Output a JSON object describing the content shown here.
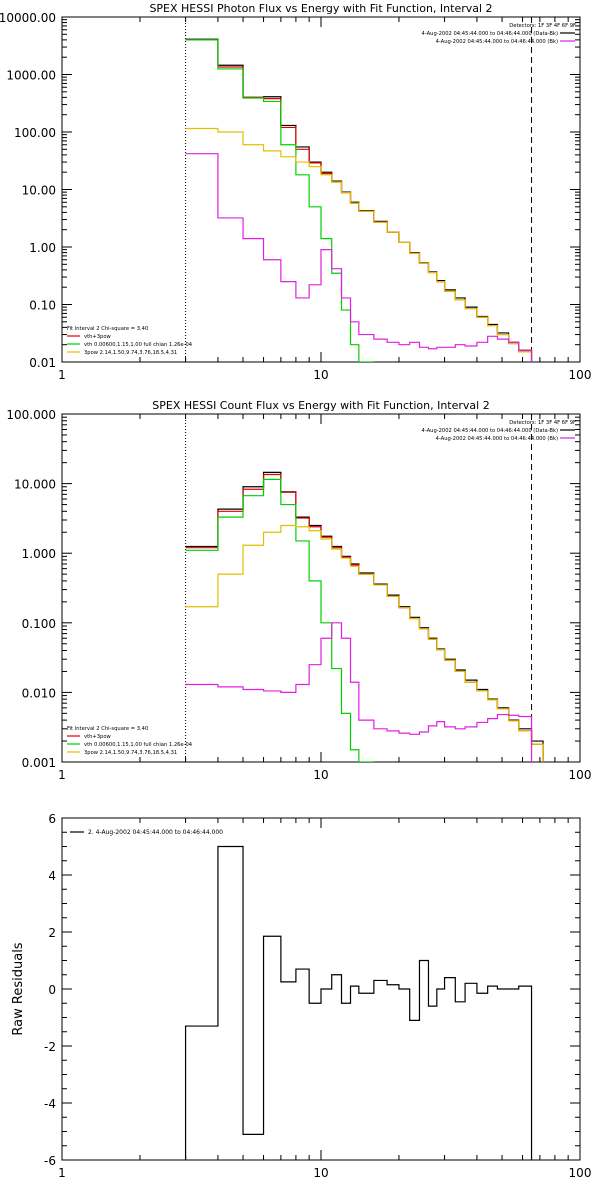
{
  "chart_data": [
    {
      "type": "line",
      "title": "SPEX HESSI Photon Flux vs Energy with Fit Function, Interval 2",
      "xlabel": "",
      "ylabel": "",
      "xscale": "log",
      "yscale": "log",
      "xlim": [
        1,
        100
      ],
      "ylim": [
        0.01,
        10000
      ],
      "xticks": [
        "1",
        "10",
        "100"
      ],
      "yticks": [
        "10000.00",
        "1000.00",
        "100.00",
        "10.00",
        "1.00",
        "0.10",
        "0.01"
      ],
      "vlines": [
        {
          "x": 3,
          "style": "dotted"
        },
        {
          "x": 65,
          "style": "dashed"
        }
      ],
      "legend_top": {
        "placement": "top-right",
        "lines": [
          {
            "text": "Detectors: 1F 3F 4F 6F 9F",
            "color": ""
          },
          {
            "text": "4-Aug-2002 04:45:44.000 to 04:46:44.000 (Data-Bk)",
            "color": "#000000"
          },
          {
            "text": "4-Aug-2002 04:45:44.000 to 04:46:44.000 (Bk)",
            "color": "#e020e0"
          }
        ]
      },
      "legend_bottom": {
        "placement": "bottom-left",
        "lines": [
          {
            "text": "Fit Interval 2   Chi-square = 3.40",
            "color": ""
          },
          {
            "text": "vth+3pow",
            "color": "#e00000"
          },
          {
            "text": "vth 0.00600,1.15,1.00  full chian 1.26e-04",
            "color": "#00d000"
          },
          {
            "text": "3pow 2.14,1.50,9.74,3.76,18.5,4.31",
            "color": "#e0c000"
          }
        ]
      },
      "edges": [
        3,
        4,
        5,
        6,
        7,
        8,
        9,
        10,
        11,
        12,
        13,
        14,
        16,
        18,
        20,
        22,
        24,
        26,
        28,
        30,
        33,
        36,
        40,
        44,
        48,
        53,
        58,
        65
      ],
      "series": [
        {
          "color": "#000000",
          "values": [
            4100,
            1450,
            400,
            410,
            130,
            55,
            30,
            20,
            14,
            9,
            6,
            4.3,
            2.8,
            1.8,
            1.2,
            0.8,
            0.53,
            0.37,
            0.26,
            0.18,
            0.13,
            0.09,
            0.062,
            0.045,
            0.032,
            0.022,
            0.016
          ]
        },
        {
          "color": "#e00000",
          "values": [
            4000,
            1350,
            400,
            380,
            120,
            50,
            29,
            19,
            13.5,
            8.8,
            5.8,
            4.2,
            2.7,
            1.8,
            1.2,
            0.78,
            0.52,
            0.36,
            0.25,
            0.17,
            0.12,
            0.085,
            0.06,
            0.043,
            0.03,
            0.021,
            0.015
          ]
        },
        {
          "color": "#00d000",
          "values": [
            4000,
            1250,
            390,
            340,
            60,
            18,
            5,
            1.4,
            0.35,
            0.08,
            0.02,
            0.008
          ]
        },
        {
          "color": "#e0c000",
          "values": [
            115,
            100,
            60,
            47,
            37,
            30,
            25,
            18,
            13.5,
            8.8,
            5.8,
            4.2,
            2.7,
            1.8,
            1.2,
            0.78,
            0.52,
            0.36,
            0.25,
            0.17,
            0.12,
            0.085,
            0.06,
            0.043,
            0.03,
            0.021,
            0.015
          ]
        },
        {
          "color": "#e020e0",
          "values": [
            42,
            3.2,
            1.4,
            0.6,
            0.25,
            0.13,
            0.22,
            0.9,
            0.42,
            0.13,
            0.05,
            0.03,
            0.025,
            0.022,
            0.02,
            0.022,
            0.018,
            0.017,
            0.018,
            0.018,
            0.02,
            0.019,
            0.022,
            0.028,
            0.025,
            0.022,
            0.016
          ]
        }
      ]
    },
    {
      "type": "line",
      "title": "SPEX HESSI Count Flux vs Energy with Fit Function, Interval 2",
      "xlabel": "",
      "ylabel": "",
      "xscale": "log",
      "yscale": "log",
      "xlim": [
        1,
        100
      ],
      "ylim": [
        0.001,
        100
      ],
      "xticks": [
        "1",
        "10",
        "100"
      ],
      "yticks": [
        "100.000",
        "10.000",
        "1.000",
        "0.100",
        "0.010",
        "0.001"
      ],
      "vlines": [
        {
          "x": 3,
          "style": "dotted"
        },
        {
          "x": 65,
          "style": "dashed"
        }
      ],
      "legend_top": {
        "placement": "top-right",
        "lines": [
          {
            "text": "Detectors: 1F 3F 4F 6F 9F",
            "color": ""
          },
          {
            "text": "4-Aug-2002 04:45:44.000 to 04:46:44.000 (Data-Bk)",
            "color": "#000000"
          },
          {
            "text": "4-Aug-2002 04:45:44.000 to 04:46:44.000 (Bk)",
            "color": "#e020e0"
          }
        ]
      },
      "legend_bottom": {
        "placement": "bottom-left",
        "lines": [
          {
            "text": "Fit Interval 2   Chi-square = 3.40",
            "color": ""
          },
          {
            "text": "vth+3pow",
            "color": "#e00000"
          },
          {
            "text": "vth 0.00600,1.15,1.00  full chian 1.26e-04",
            "color": "#00d000"
          },
          {
            "text": "3pow 2.14,1.50,9.74,3.76,18.5,4.31",
            "color": "#e0c000"
          }
        ]
      },
      "edges": [
        3,
        4,
        5,
        6,
        7,
        8,
        9,
        10,
        11,
        12,
        13,
        14,
        16,
        18,
        20,
        22,
        24,
        26,
        28,
        30,
        33,
        36,
        40,
        44,
        48,
        53,
        58,
        65,
        72
      ],
      "series": [
        {
          "color": "#000000",
          "values": [
            1.25,
            4.3,
            9.0,
            14.5,
            7.6,
            3.3,
            2.5,
            1.75,
            1.25,
            0.9,
            0.7,
            0.52,
            0.36,
            0.25,
            0.17,
            0.12,
            0.085,
            0.06,
            0.042,
            0.03,
            0.021,
            0.015,
            0.011,
            0.008,
            0.006,
            0.004,
            0.003,
            0.002
          ]
        },
        {
          "color": "#e00000",
          "values": [
            1.2,
            4.0,
            8.3,
            13.5,
            7.5,
            3.2,
            2.4,
            1.7,
            1.2,
            0.88,
            0.68,
            0.5,
            0.35,
            0.24,
            0.165,
            0.115,
            0.082,
            0.058,
            0.041,
            0.029,
            0.02,
            0.014,
            0.0105,
            0.0078,
            0.0058,
            0.0039,
            0.0028,
            0.0018
          ]
        },
        {
          "color": "#00d000",
          "values": [
            1.1,
            3.3,
            6.7,
            11.5,
            5.0,
            1.5,
            0.4,
            0.1,
            0.022,
            0.005,
            0.0015,
            0.0005
          ]
        },
        {
          "color": "#e0c000",
          "values": [
            0.17,
            0.5,
            1.3,
            2.0,
            2.5,
            2.4,
            2.1,
            1.6,
            1.15,
            0.85,
            0.65,
            0.5,
            0.35,
            0.24,
            0.165,
            0.115,
            0.082,
            0.058,
            0.041,
            0.029,
            0.02,
            0.014,
            0.0105,
            0.0078,
            0.0058,
            0.0039,
            0.0028,
            0.0018
          ]
        },
        {
          "color": "#e020e0",
          "values": [
            0.013,
            0.012,
            0.011,
            0.0105,
            0.01,
            0.013,
            0.025,
            0.06,
            0.1,
            0.06,
            0.014,
            0.004,
            0.003,
            0.0028,
            0.0026,
            0.0025,
            0.0027,
            0.0033,
            0.0038,
            0.0032,
            0.003,
            0.0032,
            0.0037,
            0.0042,
            0.0048,
            0.0047,
            0.0045
          ]
        }
      ]
    },
    {
      "type": "line",
      "title": "",
      "xlabel": "",
      "ylabel": "Raw Residuals",
      "xscale": "log",
      "yscale": "linear",
      "xlim": [
        1,
        100
      ],
      "ylim": [
        -6,
        6
      ],
      "xticks": [
        "1",
        "10",
        "100"
      ],
      "yticks": [
        "6",
        "4",
        "2",
        "0",
        "-2",
        "-4",
        "-6"
      ],
      "vlines": [],
      "legend_top": {
        "placement": "top-left",
        "lines": [
          {
            "text": "2.  4-Aug-2002 04:45:44.000 to 04:46:44.000",
            "color": "#000000"
          }
        ]
      },
      "legend_bottom": {
        "placement": "bottom-left",
        "lines": []
      },
      "edges": [
        3,
        4,
        5,
        6,
        7,
        8,
        9,
        10,
        11,
        12,
        13,
        14,
        16,
        18,
        20,
        22,
        24,
        26,
        28,
        30,
        33,
        36,
        40,
        44,
        48,
        53,
        58,
        65
      ],
      "start_from_bottom": true,
      "series": [
        {
          "color": "#000000",
          "values": [
            -1.3,
            5.0,
            -5.1,
            1.85,
            0.25,
            0.7,
            -0.5,
            0.0,
            0.5,
            -0.5,
            0.1,
            -0.15,
            0.3,
            0.15,
            0.0,
            -1.1,
            1.0,
            -0.6,
            0.0,
            0.4,
            -0.45,
            0.2,
            -0.15,
            0.1,
            0.0,
            0.0,
            0.1
          ]
        }
      ]
    }
  ]
}
